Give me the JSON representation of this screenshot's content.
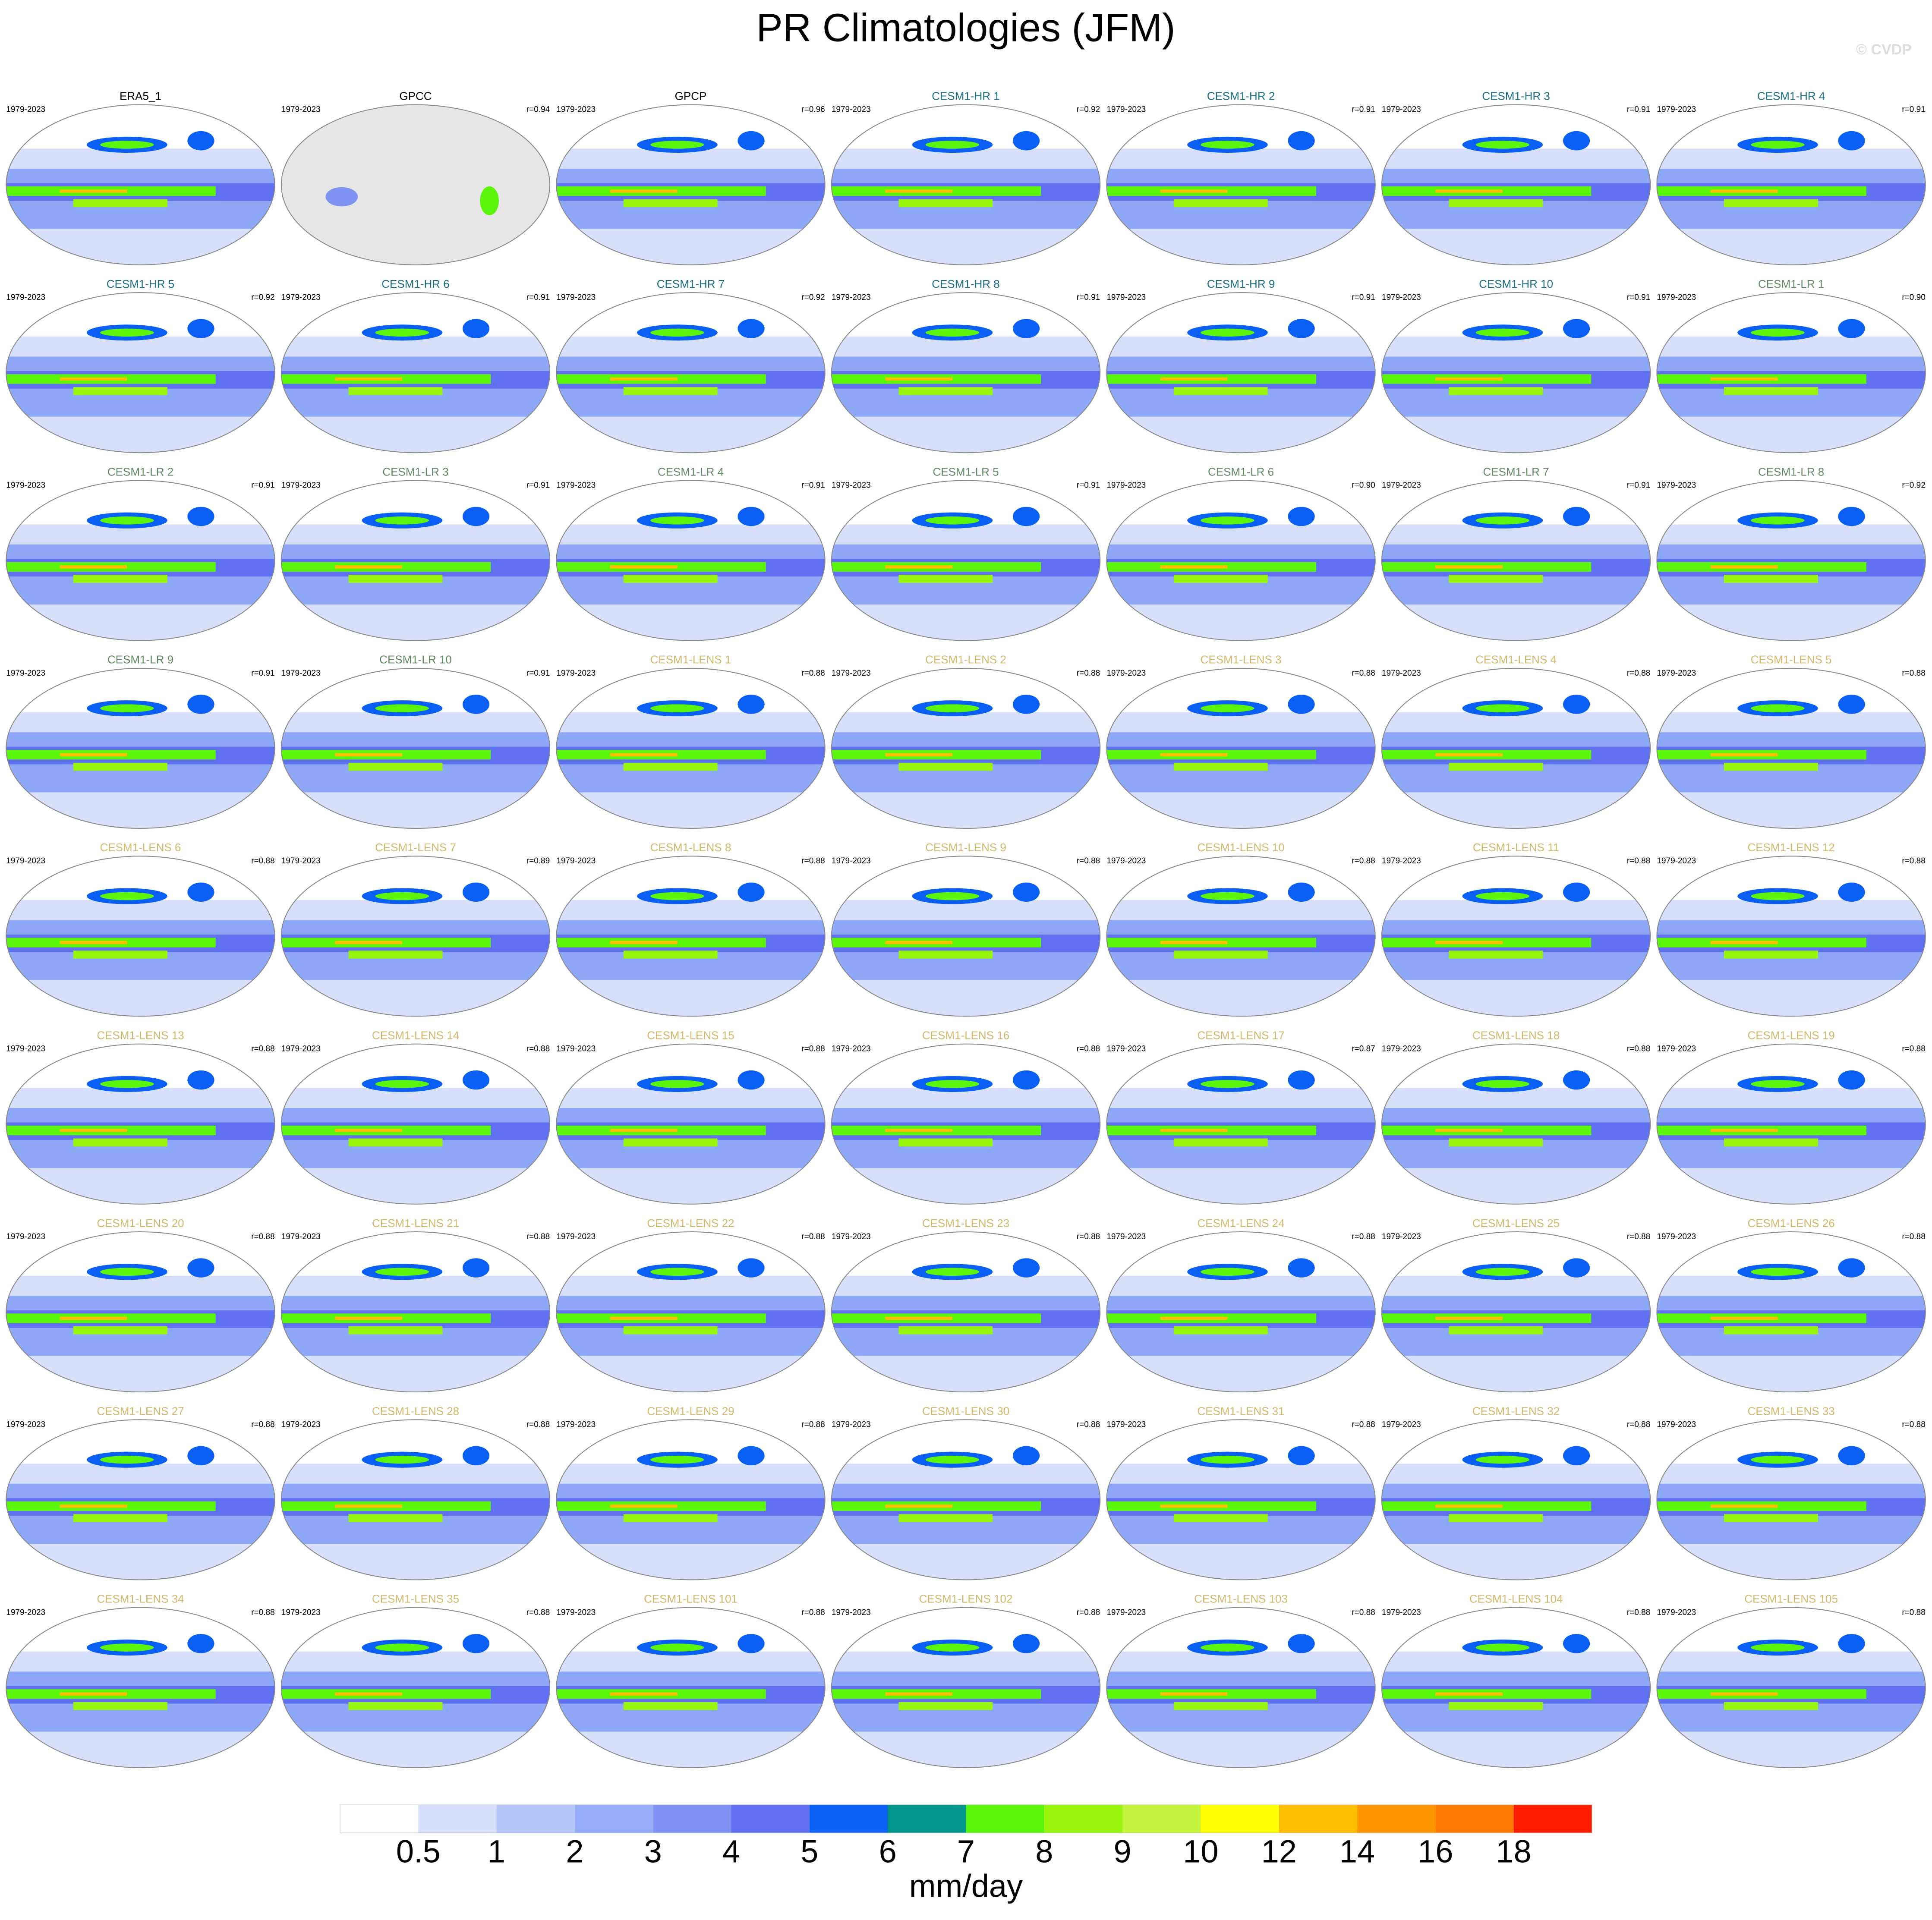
{
  "title": "PR Climatologies (JFM)",
  "watermark": "© CVDP",
  "panels": [
    {
      "name": "ERA5_1",
      "period": "1979-2023",
      "r": null,
      "color": "#000000"
    },
    {
      "name": "GPCC",
      "period": "1979-2023",
      "r": "r=0.94",
      "color": "#000000"
    },
    {
      "name": "GPCP",
      "period": "1979-2023",
      "r": "r=0.96",
      "color": "#000000"
    },
    {
      "name": "CESM1-HR 1",
      "period": "1979-2023",
      "r": "r=0.92",
      "color": "#1a6f85"
    },
    {
      "name": "CESM1-HR 2",
      "period": "1979-2023",
      "r": "r=0.91",
      "color": "#1a6f85"
    },
    {
      "name": "CESM1-HR 3",
      "period": "1979-2023",
      "r": "r=0.91",
      "color": "#1a6f85"
    },
    {
      "name": "CESM1-HR 4",
      "period": "1979-2023",
      "r": "r=0.91",
      "color": "#1a6f85"
    },
    {
      "name": "CESM1-HR 5",
      "period": "1979-2023",
      "r": "r=0.92",
      "color": "#1a6f85"
    },
    {
      "name": "CESM1-HR 6",
      "period": "1979-2023",
      "r": "r=0.91",
      "color": "#1a6f85"
    },
    {
      "name": "CESM1-HR 7",
      "period": "1979-2023",
      "r": "r=0.92",
      "color": "#1a6f85"
    },
    {
      "name": "CESM1-HR 8",
      "period": "1979-2023",
      "r": "r=0.91",
      "color": "#1a6f85"
    },
    {
      "name": "CESM1-HR 9",
      "period": "1979-2023",
      "r": "r=0.91",
      "color": "#1a6f85"
    },
    {
      "name": "CESM1-HR 10",
      "period": "1979-2023",
      "r": "r=0.91",
      "color": "#1a6f85"
    },
    {
      "name": "CESM1-LR 1",
      "period": "1979-2023",
      "r": "r=0.90",
      "color": "#5f8a60"
    },
    {
      "name": "CESM1-LR 2",
      "period": "1979-2023",
      "r": "r=0.91",
      "color": "#5f8a60"
    },
    {
      "name": "CESM1-LR 3",
      "period": "1979-2023",
      "r": "r=0.91",
      "color": "#5f8a60"
    },
    {
      "name": "CESM1-LR 4",
      "period": "1979-2023",
      "r": "r=0.91",
      "color": "#5f8a60"
    },
    {
      "name": "CESM1-LR 5",
      "period": "1979-2023",
      "r": "r=0.91",
      "color": "#5f8a60"
    },
    {
      "name": "CESM1-LR 6",
      "period": "1979-2023",
      "r": "r=0.90",
      "color": "#5f8a60"
    },
    {
      "name": "CESM1-LR 7",
      "period": "1979-2023",
      "r": "r=0.91",
      "color": "#5f8a60"
    },
    {
      "name": "CESM1-LR 8",
      "period": "1979-2023",
      "r": "r=0.92",
      "color": "#5f8a60"
    },
    {
      "name": "CESM1-LR 9",
      "period": "1979-2023",
      "r": "r=0.91",
      "color": "#5f8a60"
    },
    {
      "name": "CESM1-LR 10",
      "period": "1979-2023",
      "r": "r=0.91",
      "color": "#5f8a60"
    },
    {
      "name": "CESM1-LENS 1",
      "period": "1979-2023",
      "r": "r=0.88",
      "color": "#d2b86a"
    },
    {
      "name": "CESM1-LENS 2",
      "period": "1979-2023",
      "r": "r=0.88",
      "color": "#d2b86a"
    },
    {
      "name": "CESM1-LENS 3",
      "period": "1979-2023",
      "r": "r=0.88",
      "color": "#d2b86a"
    },
    {
      "name": "CESM1-LENS 4",
      "period": "1979-2023",
      "r": "r=0.88",
      "color": "#d2b86a"
    },
    {
      "name": "CESM1-LENS 5",
      "period": "1979-2023",
      "r": "r=0.88",
      "color": "#d2b86a"
    },
    {
      "name": "CESM1-LENS 6",
      "period": "1979-2023",
      "r": "r=0.88",
      "color": "#d2b86a"
    },
    {
      "name": "CESM1-LENS 7",
      "period": "1979-2023",
      "r": "r=0.89",
      "color": "#d2b86a"
    },
    {
      "name": "CESM1-LENS 8",
      "period": "1979-2023",
      "r": "r=0.88",
      "color": "#d2b86a"
    },
    {
      "name": "CESM1-LENS 9",
      "period": "1979-2023",
      "r": "r=0.88",
      "color": "#d2b86a"
    },
    {
      "name": "CESM1-LENS 10",
      "period": "1979-2023",
      "r": "r=0.88",
      "color": "#d2b86a"
    },
    {
      "name": "CESM1-LENS 11",
      "period": "1979-2023",
      "r": "r=0.88",
      "color": "#d2b86a"
    },
    {
      "name": "CESM1-LENS 12",
      "period": "1979-2023",
      "r": "r=0.88",
      "color": "#d2b86a"
    },
    {
      "name": "CESM1-LENS 13",
      "period": "1979-2023",
      "r": "r=0.88",
      "color": "#d2b86a"
    },
    {
      "name": "CESM1-LENS 14",
      "period": "1979-2023",
      "r": "r=0.88",
      "color": "#d2b86a"
    },
    {
      "name": "CESM1-LENS 15",
      "period": "1979-2023",
      "r": "r=0.88",
      "color": "#d2b86a"
    },
    {
      "name": "CESM1-LENS 16",
      "period": "1979-2023",
      "r": "r=0.88",
      "color": "#d2b86a"
    },
    {
      "name": "CESM1-LENS 17",
      "period": "1979-2023",
      "r": "r=0.87",
      "color": "#d2b86a"
    },
    {
      "name": "CESM1-LENS 18",
      "period": "1979-2023",
      "r": "r=0.88",
      "color": "#d2b86a"
    },
    {
      "name": "CESM1-LENS 19",
      "period": "1979-2023",
      "r": "r=0.88",
      "color": "#d2b86a"
    },
    {
      "name": "CESM1-LENS 20",
      "period": "1979-2023",
      "r": "r=0.88",
      "color": "#d2b86a"
    },
    {
      "name": "CESM1-LENS 21",
      "period": "1979-2023",
      "r": "r=0.88",
      "color": "#d2b86a"
    },
    {
      "name": "CESM1-LENS 22",
      "period": "1979-2023",
      "r": "r=0.88",
      "color": "#d2b86a"
    },
    {
      "name": "CESM1-LENS 23",
      "period": "1979-2023",
      "r": "r=0.88",
      "color": "#d2b86a"
    },
    {
      "name": "CESM1-LENS 24",
      "period": "1979-2023",
      "r": "r=0.88",
      "color": "#d2b86a"
    },
    {
      "name": "CESM1-LENS 25",
      "period": "1979-2023",
      "r": "r=0.88",
      "color": "#d2b86a"
    },
    {
      "name": "CESM1-LENS 26",
      "period": "1979-2023",
      "r": "r=0.88",
      "color": "#d2b86a"
    },
    {
      "name": "CESM1-LENS 27",
      "period": "1979-2023",
      "r": "r=0.88",
      "color": "#d2b86a"
    },
    {
      "name": "CESM1-LENS 28",
      "period": "1979-2023",
      "r": "r=0.88",
      "color": "#d2b86a"
    },
    {
      "name": "CESM1-LENS 29",
      "period": "1979-2023",
      "r": "r=0.88",
      "color": "#d2b86a"
    },
    {
      "name": "CESM1-LENS 30",
      "period": "1979-2023",
      "r": "r=0.88",
      "color": "#d2b86a"
    },
    {
      "name": "CESM1-LENS 31",
      "period": "1979-2023",
      "r": "r=0.88",
      "color": "#d2b86a"
    },
    {
      "name": "CESM1-LENS 32",
      "period": "1979-2023",
      "r": "r=0.88",
      "color": "#d2b86a"
    },
    {
      "name": "CESM1-LENS 33",
      "period": "1979-2023",
      "r": "r=0.88",
      "color": "#d2b86a"
    },
    {
      "name": "CESM1-LENS 34",
      "period": "1979-2023",
      "r": "r=0.88",
      "color": "#d2b86a"
    },
    {
      "name": "CESM1-LENS 35",
      "period": "1979-2023",
      "r": "r=0.88",
      "color": "#d2b86a"
    },
    {
      "name": "CESM1-LENS 101",
      "period": "1979-2023",
      "r": "r=0.88",
      "color": "#d2b86a"
    },
    {
      "name": "CESM1-LENS 102",
      "period": "1979-2023",
      "r": "r=0.88",
      "color": "#d2b86a"
    },
    {
      "name": "CESM1-LENS 103",
      "period": "1979-2023",
      "r": "r=0.88",
      "color": "#d2b86a"
    },
    {
      "name": "CESM1-LENS 104",
      "period": "1979-2023",
      "r": "r=0.88",
      "color": "#d2b86a"
    },
    {
      "name": "CESM1-LENS 105",
      "period": "1979-2023",
      "r": "r=0.88",
      "color": "#d2b86a"
    }
  ],
  "colorbar": {
    "colors": [
      "#ffffff",
      "#d6e0fa",
      "#b4c6fa",
      "#96adf8",
      "#7f93f5",
      "#6070f0",
      "#0a60f5",
      "#00968c",
      "#5af50a",
      "#96f50a",
      "#c3f53c",
      "#ffff00",
      "#ffbe00",
      "#ff9600",
      "#ff7800",
      "#ff1e00"
    ],
    "labels": [
      0.5,
      1,
      2,
      3,
      4,
      5,
      6,
      7,
      8,
      9,
      10,
      12,
      14,
      16,
      18
    ],
    "unit": "mm/day"
  }
}
